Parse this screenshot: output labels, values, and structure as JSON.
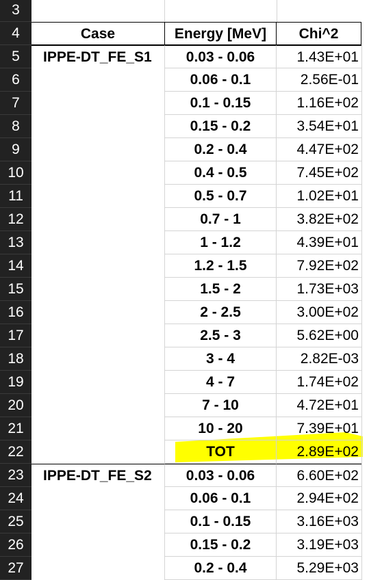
{
  "headers": {
    "row_number": "4",
    "case": "Case",
    "energy": "Energy [MeV]",
    "chi": "Chi^2"
  },
  "blank_rows": [
    "3"
  ],
  "highlight_color": "#ffff00",
  "grid_color": "#d4d4d4",
  "rows": [
    {
      "n": "5",
      "case": "IPPE-DT_FE_S1",
      "energy": "0.03 - 0.06",
      "chi": "1.43E+01"
    },
    {
      "n": "6",
      "case": "",
      "energy": "0.06 - 0.1",
      "chi": "2.56E-01"
    },
    {
      "n": "7",
      "case": "",
      "energy": "0.1 - 0.15",
      "chi": "1.16E+02"
    },
    {
      "n": "8",
      "case": "",
      "energy": "0.15 - 0.2",
      "chi": "3.54E+01"
    },
    {
      "n": "9",
      "case": "",
      "energy": "0.2 - 0.4",
      "chi": "4.47E+02"
    },
    {
      "n": "10",
      "case": "",
      "energy": "0.4 - 0.5",
      "chi": "7.45E+02"
    },
    {
      "n": "11",
      "case": "",
      "energy": "0.5 - 0.7",
      "chi": "1.02E+01"
    },
    {
      "n": "12",
      "case": "",
      "energy": "0.7 - 1",
      "chi": "3.82E+02"
    },
    {
      "n": "13",
      "case": "",
      "energy": "1 - 1.2",
      "chi": "4.39E+01"
    },
    {
      "n": "14",
      "case": "",
      "energy": "1.2 - 1.5",
      "chi": "7.92E+02"
    },
    {
      "n": "15",
      "case": "",
      "energy": "1.5 - 2",
      "chi": "1.73E+03"
    },
    {
      "n": "16",
      "case": "",
      "energy": "2 - 2.5",
      "chi": "3.00E+02"
    },
    {
      "n": "17",
      "case": "",
      "energy": "2.5 - 3",
      "chi": "5.62E+00"
    },
    {
      "n": "18",
      "case": "",
      "energy": "3 - 4",
      "chi": "2.82E-03"
    },
    {
      "n": "19",
      "case": "",
      "energy": "4 - 7",
      "chi": "1.74E+02"
    },
    {
      "n": "20",
      "case": "",
      "energy": "7 - 10",
      "chi": "4.72E+01"
    },
    {
      "n": "21",
      "case": "",
      "energy": "10 - 20",
      "chi": "7.39E+01"
    },
    {
      "n": "22",
      "case": "",
      "energy": "TOT",
      "chi": "2.89E+02",
      "highlight": true
    },
    {
      "n": "23",
      "case": "IPPE-DT_FE_S2",
      "energy": "0.03 - 0.06",
      "chi": "6.60E+02"
    },
    {
      "n": "24",
      "case": "",
      "energy": "0.06 - 0.1",
      "chi": "2.94E+02"
    },
    {
      "n": "25",
      "case": "",
      "energy": "0.1 - 0.15",
      "chi": "3.16E+03"
    },
    {
      "n": "26",
      "case": "",
      "energy": "0.15 - 0.2",
      "chi": "3.19E+03"
    },
    {
      "n": "27",
      "case": "",
      "energy": "0.2 - 0.4",
      "chi": "5.29E+03"
    }
  ]
}
